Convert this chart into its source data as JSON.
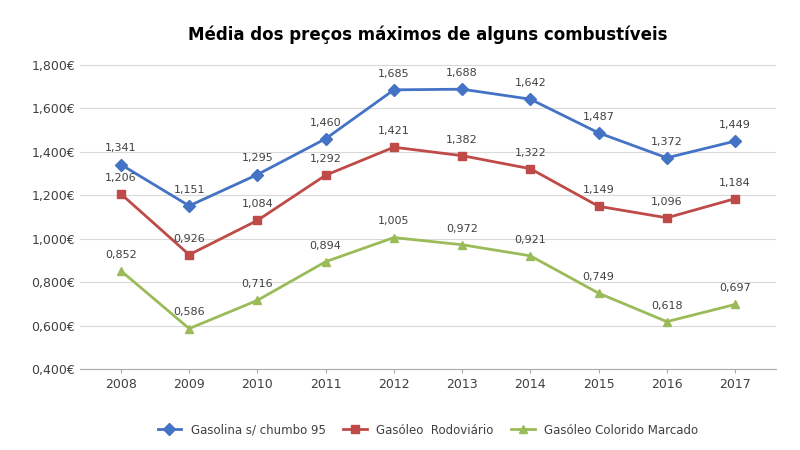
{
  "title": "Média dos preços máximos de alguns combustíveis",
  "years": [
    2008,
    2009,
    2010,
    2011,
    2012,
    2013,
    2014,
    2015,
    2016,
    2017
  ],
  "series": [
    {
      "name": "Gasolina s/ chumbo 95",
      "values": [
        1.341,
        1.151,
        1.295,
        1.46,
        1.685,
        1.688,
        1.642,
        1.487,
        1.372,
        1.449
      ],
      "color": "#4472C4",
      "marker": "D"
    },
    {
      "name": "Gasóleo  Rodoviário",
      "values": [
        1.206,
        0.926,
        1.084,
        1.292,
        1.421,
        1.382,
        1.322,
        1.149,
        1.096,
        1.184
      ],
      "color": "#BE4B48",
      "marker": "s"
    },
    {
      "name": "Gasóleo Colorido Marcado",
      "values": [
        0.852,
        0.586,
        0.716,
        0.894,
        1.005,
        0.972,
        0.921,
        0.749,
        0.618,
        0.697
      ],
      "color": "#9BBB59",
      "marker": "^"
    }
  ],
  "ylim": [
    0.4,
    1.85
  ],
  "yticks": [
    0.4,
    0.6,
    0.8,
    1.0,
    1.2,
    1.4,
    1.6,
    1.8
  ],
  "ytick_labels": [
    "0,400€",
    "0,600€",
    "0,800€",
    "1,000€",
    "1,200€",
    "1,400€",
    "1,600€",
    "1,800€"
  ],
  "background_color": "#FFFFFF",
  "title_fontsize": 12,
  "label_fontsize": 8,
  "legend_fontsize": 8.5,
  "axis_color": "#AAAAAA",
  "grid_color": "#D9D9D9",
  "text_color": "#404040"
}
